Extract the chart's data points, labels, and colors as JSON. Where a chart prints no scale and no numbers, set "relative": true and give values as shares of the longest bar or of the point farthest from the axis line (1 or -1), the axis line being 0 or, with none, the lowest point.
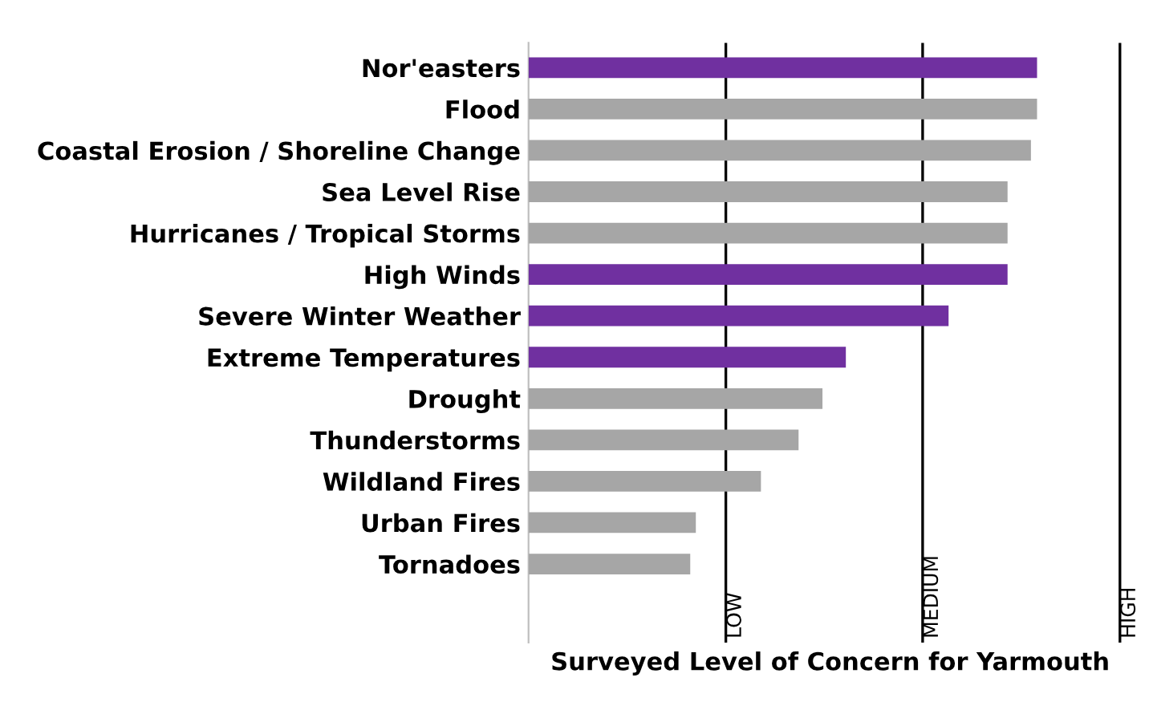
{
  "chart_data": {
    "type": "bar",
    "orientation": "horizontal",
    "relative": true,
    "xlabel": "Surveyed Level of Concern for Yarmouth",
    "categories": [
      "Nor'easters",
      "Flood",
      "Coastal Erosion / Shoreline Change",
      "Sea Level Rise",
      "Hurricanes / Tropical Storms",
      "High Winds",
      "Severe Winter Weather",
      "Extreme Temperatures",
      "Drought",
      "Thunderstorms",
      "Wildland Fires",
      "Urban Fires",
      "Tornadoes"
    ],
    "values": [
      1,
      1,
      0.988,
      0.942,
      0.942,
      0.942,
      0.826,
      0.624,
      0.578,
      0.531,
      0.457,
      0.329,
      0.318
    ],
    "colors": [
      "#7030a0",
      "#a6a6a6",
      "#a6a6a6",
      "#a6a6a6",
      "#a6a6a6",
      "#7030a0",
      "#7030a0",
      "#7030a0",
      "#a6a6a6",
      "#a6a6a6",
      "#a6a6a6",
      "#a6a6a6",
      "#a6a6a6"
    ],
    "ref_lines": [
      {
        "axis": "x",
        "value": 0.388,
        "label": "LOW",
        "color": "#000000"
      },
      {
        "axis": "x",
        "value": 0.775,
        "label": "MEDIUM",
        "color": "#000000"
      },
      {
        "axis": "x",
        "value": 1.163,
        "label": "HIGH",
        "color": "#000000"
      }
    ]
  }
}
